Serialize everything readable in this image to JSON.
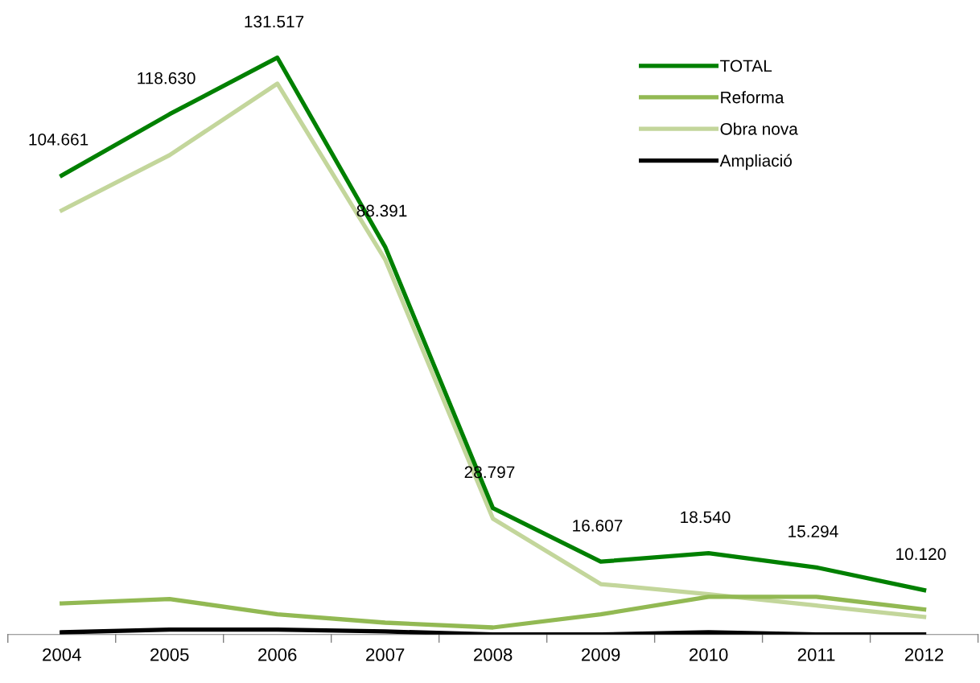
{
  "chart_data": {
    "type": "line",
    "relative": false,
    "categories": [
      "2004",
      "2005",
      "2006",
      "2007",
      "2008",
      "2009",
      "2010",
      "2011",
      "2012"
    ],
    "series": [
      {
        "name": "TOTAL",
        "color": "#008000",
        "values": [
          104661,
          118630,
          131517,
          88391,
          28797,
          16607,
          18540,
          15294,
          10120
        ],
        "value_labels": [
          "104.661",
          "118.630",
          "131.517",
          "88.391",
          "28.797",
          "16.607",
          "18.540",
          "15.294",
          "10.120"
        ]
      },
      {
        "name": "Reforma",
        "color": "#92b953",
        "values": [
          7100,
          8100,
          4600,
          2700,
          1600,
          4600,
          8600,
          8600,
          5700
        ]
      },
      {
        "name": "Obra nova",
        "color": "#c3d69b",
        "values": [
          96700,
          109300,
          125600,
          85500,
          26400,
          11500,
          9200,
          6600,
          4000
        ]
      },
      {
        "name": "Ampliació",
        "color": "#000000",
        "values": [
          500,
          1100,
          1100,
          700,
          0,
          0,
          500,
          0,
          0
        ]
      }
    ],
    "legend": "top right",
    "grid": false,
    "marker": "none",
    "line_style": "solid"
  }
}
